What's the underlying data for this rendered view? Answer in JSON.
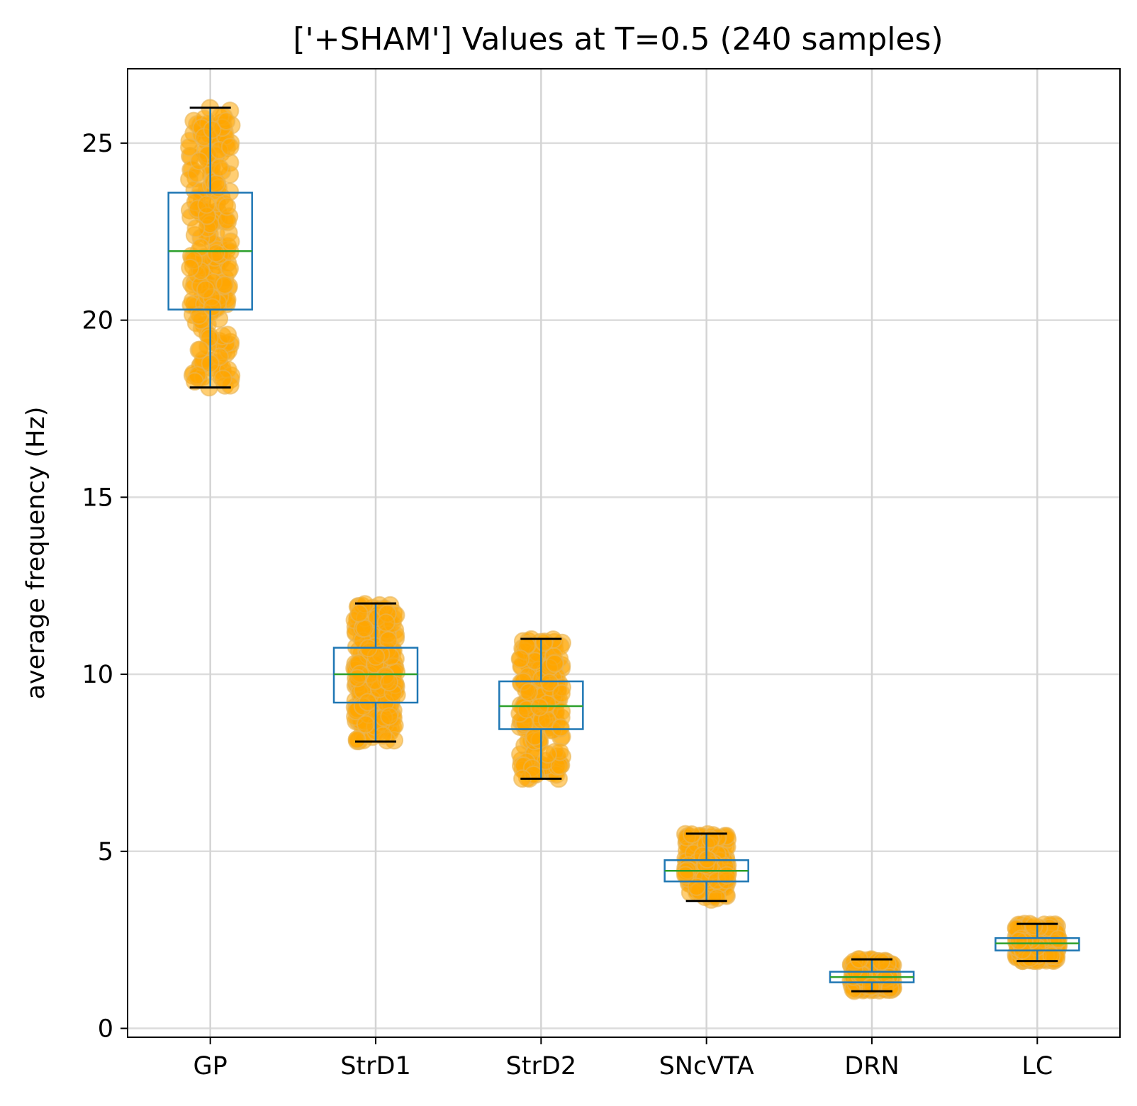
{
  "chart_data": {
    "type": "box",
    "title": "['+SHAM'] Values at T=0.5 (240 samples)",
    "xlabel": "",
    "ylabel": "average frequency (Hz)",
    "ylim": [
      -0.25,
      27.1
    ],
    "y_ticks": [
      0,
      5,
      10,
      15,
      20,
      25
    ],
    "grid": true,
    "point_color": "#ffa500",
    "box_color": "#1f77b4",
    "median_color": "#2ca02c",
    "whisker_cap_color": "#000000",
    "categories": [
      "GP",
      "StrD1",
      "StrD2",
      "SNcVTA",
      "DRN",
      "LC"
    ],
    "boxes": [
      {
        "name": "GP",
        "min": 18.1,
        "q1": 20.3,
        "median": 21.95,
        "q3": 23.6,
        "max": 26.0
      },
      {
        "name": "StrD1",
        "min": 8.1,
        "q1": 9.2,
        "median": 10.0,
        "q3": 10.75,
        "max": 12.0
      },
      {
        "name": "StrD2",
        "min": 7.05,
        "q1": 8.45,
        "median": 9.1,
        "q3": 9.8,
        "max": 11.0
      },
      {
        "name": "SNcVTA",
        "min": 3.6,
        "q1": 4.15,
        "median": 4.45,
        "q3": 4.75,
        "max": 5.5
      },
      {
        "name": "DRN",
        "min": 1.05,
        "q1": 1.3,
        "median": 1.45,
        "q3": 1.6,
        "max": 1.95
      },
      {
        "name": "LC",
        "min": 1.9,
        "q1": 2.2,
        "median": 2.4,
        "q3": 2.55,
        "max": 2.95
      }
    ],
    "samples_per_box": 240
  }
}
